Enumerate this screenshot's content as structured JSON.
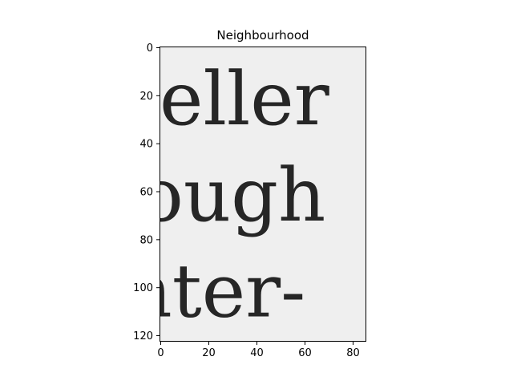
{
  "chart_data": {
    "type": "heatmap",
    "title": "Neighbourhood",
    "xlim": [
      -0.5,
      85.5
    ],
    "ylim": [
      122.5,
      -0.5
    ],
    "xticks": [
      0,
      20,
      40,
      60,
      80
    ],
    "yticks": [
      0,
      20,
      40,
      60,
      80,
      100,
      120
    ],
    "colormap": "gray",
    "grid": false,
    "image_text_lines": [
      "eller",
      "ough",
      "nter-"
    ],
    "background_color": "#efefef",
    "ink_color": "#262626"
  }
}
